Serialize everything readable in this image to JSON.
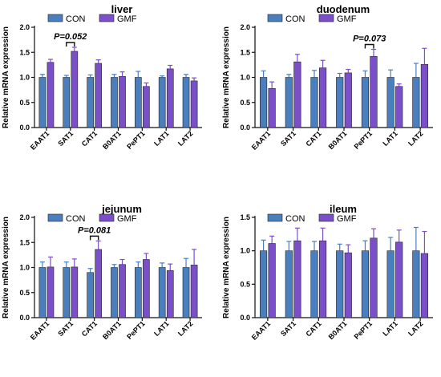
{
  "legend": [
    "CON",
    "GMF"
  ],
  "colors": {
    "CON": "#4a7fbf",
    "GMF": "#7b4fc9",
    "edge": "#222222"
  },
  "chart_data": [
    {
      "type": "bar",
      "title": "liver",
      "ylabel": "Relative mRNA expression",
      "ylim": [
        0,
        2.0
      ],
      "yticks": [
        "0.0",
        "0.5",
        "1.0",
        "1.5",
        "2.0"
      ],
      "categories": [
        "EAAT1",
        "SAT1",
        "CAT1",
        "B0AT1",
        "PePT1",
        "LAT1",
        "LAT2"
      ],
      "series": [
        {
          "name": "CON",
          "values": [
            1.0,
            1.0,
            1.0,
            1.0,
            1.0,
            1.0,
            1.0
          ],
          "errors": [
            0.06,
            0.04,
            0.05,
            0.06,
            0.12,
            0.03,
            0.06
          ]
        },
        {
          "name": "GMF",
          "values": [
            1.3,
            1.52,
            1.28,
            1.02,
            0.82,
            1.17,
            0.93
          ],
          "errors": [
            0.06,
            0.08,
            0.07,
            0.09,
            0.07,
            0.07,
            0.06
          ]
        }
      ],
      "annotation": {
        "text": "P=0.052",
        "category": 1
      }
    },
    {
      "type": "bar",
      "title": "duodenum",
      "ylabel": "Relative mRNA expression",
      "ylim": [
        0,
        2.0
      ],
      "yticks": [
        "0.0",
        "0.5",
        "1.0",
        "1.5",
        "2.0"
      ],
      "categories": [
        "EAAT1",
        "SAT1",
        "CAT1",
        "B0AT1",
        "PePT1",
        "LAT1",
        "LAT2"
      ],
      "series": [
        {
          "name": "CON",
          "values": [
            1.0,
            1.0,
            1.0,
            1.0,
            1.0,
            1.0,
            1.0
          ],
          "errors": [
            0.13,
            0.06,
            0.14,
            0.08,
            0.13,
            0.15,
            0.28
          ]
        },
        {
          "name": "GMF",
          "values": [
            0.78,
            1.31,
            1.19,
            1.09,
            1.42,
            0.82,
            1.26
          ],
          "errors": [
            0.13,
            0.15,
            0.15,
            0.07,
            0.14,
            0.05,
            0.32
          ]
        }
      ],
      "annotation": {
        "text": "P=0.073",
        "category": 4
      }
    },
    {
      "type": "bar",
      "title": "jejunum",
      "ylabel": "Relative mRNA expression",
      "ylim": [
        0,
        2.0
      ],
      "yticks": [
        "0.0",
        "0.5",
        "1.0",
        "1.5",
        "2.0"
      ],
      "categories": [
        "EAAT1",
        "SAT1",
        "CAT1",
        "B0AT1",
        "PePT1",
        "LAT1",
        "LAT2"
      ],
      "series": [
        {
          "name": "CON",
          "values": [
            1.0,
            1.0,
            0.9,
            1.0,
            1.0,
            1.0,
            1.0
          ],
          "errors": [
            0.11,
            0.11,
            0.08,
            0.06,
            0.11,
            0.09,
            0.18
          ]
        },
        {
          "name": "GMF",
          "values": [
            1.01,
            1.01,
            1.36,
            1.06,
            1.16,
            0.94,
            1.05
          ],
          "errors": [
            0.2,
            0.16,
            0.17,
            0.1,
            0.12,
            0.13,
            0.31
          ]
        }
      ],
      "annotation": {
        "text": "P=0.081",
        "category": 2
      }
    },
    {
      "type": "bar",
      "title": "ileum",
      "ylabel": "Relative mRNA expression",
      "ylim": [
        0,
        1.5
      ],
      "yticks": [
        "0.0",
        "0.5",
        "1.0",
        "1.5"
      ],
      "categories": [
        "EAAT1",
        "SAT1",
        "CAT1",
        "B0AT1",
        "PePT1",
        "LAT1",
        "LAT2"
      ],
      "series": [
        {
          "name": "CON",
          "values": [
            1.0,
            1.0,
            1.0,
            1.0,
            1.0,
            1.0,
            1.0
          ],
          "errors": [
            0.16,
            0.14,
            0.14,
            0.1,
            0.15,
            0.2,
            0.35
          ]
        },
        {
          "name": "GMF",
          "values": [
            1.11,
            1.15,
            1.15,
            0.97,
            1.19,
            1.13,
            0.96
          ],
          "errors": [
            0.11,
            0.19,
            0.19,
            0.12,
            0.14,
            0.18,
            0.33
          ]
        }
      ],
      "annotation": null
    }
  ]
}
